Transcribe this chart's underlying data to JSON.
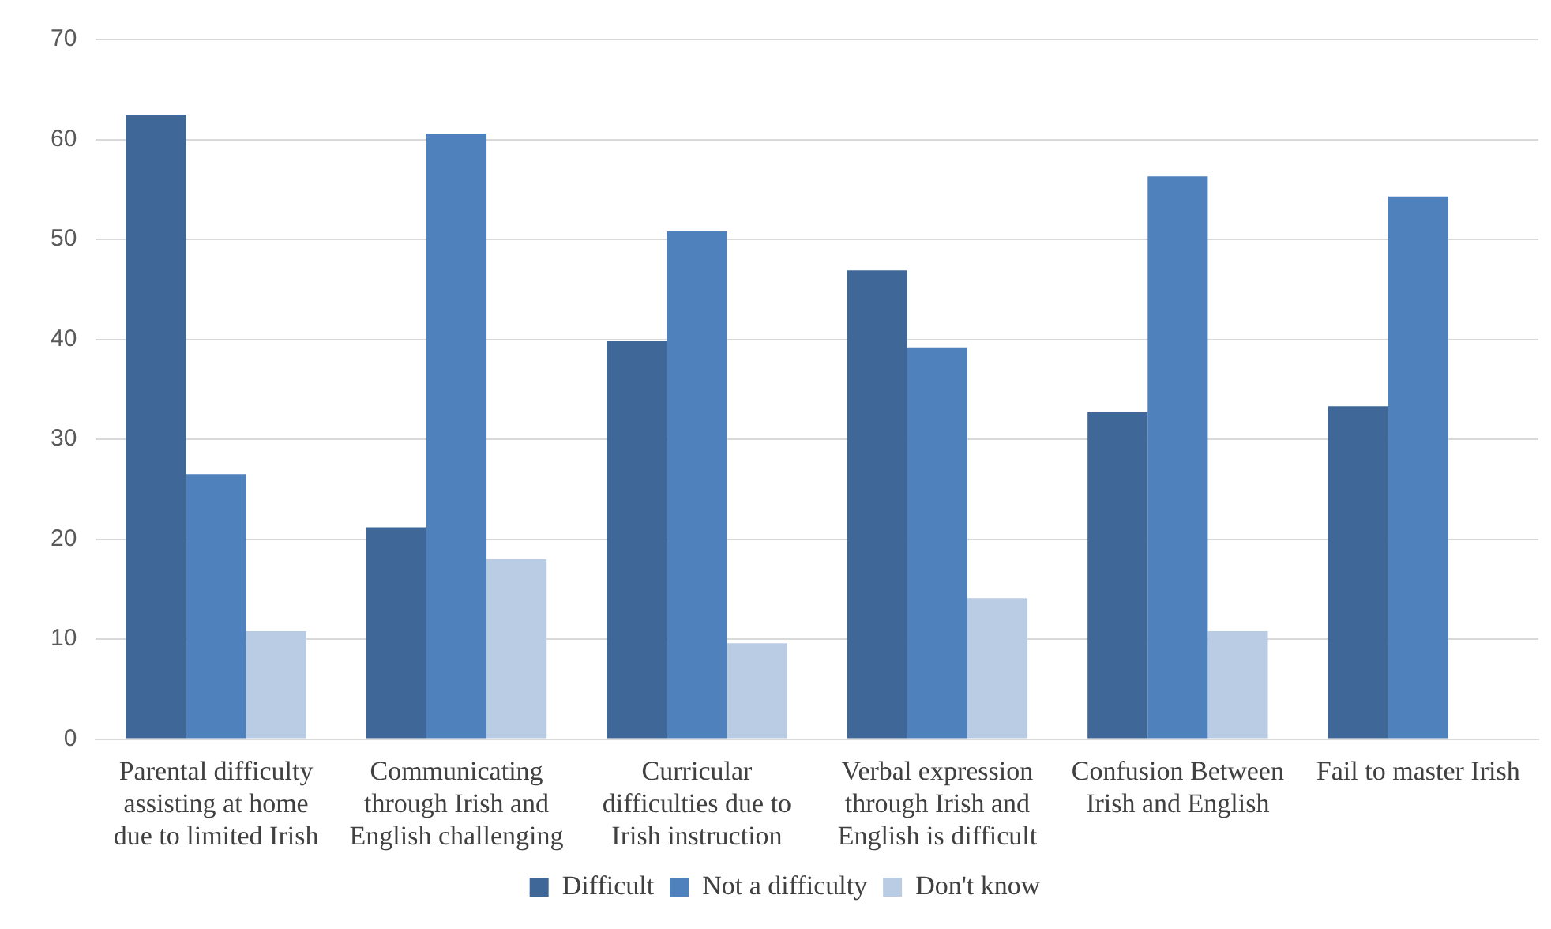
{
  "chart_data": {
    "type": "bar",
    "categories": [
      "Parental difficulty assisting at home due to limited Irish",
      "Communicating through Irish and English challenging",
      "Curricular difficulties due to Irish instruction",
      "Verbal expression through Irish and English is difficult",
      "Confusion Between Irish and English",
      "Fail to master Irish"
    ],
    "series": [
      {
        "name": "Difficult",
        "color": "#3f6899",
        "values": [
          62.5,
          21.2,
          39.8,
          46.9,
          32.7,
          33.3
        ]
      },
      {
        "name": "Not a difficulty",
        "color": "#4f81bd",
        "values": [
          26.5,
          60.6,
          50.8,
          39.2,
          56.3,
          54.3
        ]
      },
      {
        "name": "Don't know",
        "color": "#b9cce4",
        "values": [
          10.8,
          18.0,
          9.6,
          14.1,
          10.8,
          null
        ]
      }
    ],
    "ylim": [
      0,
      70
    ],
    "yticks": [
      0,
      10,
      20,
      30,
      40,
      50,
      60,
      70
    ],
    "grid": "y",
    "legend": "bottom"
  }
}
